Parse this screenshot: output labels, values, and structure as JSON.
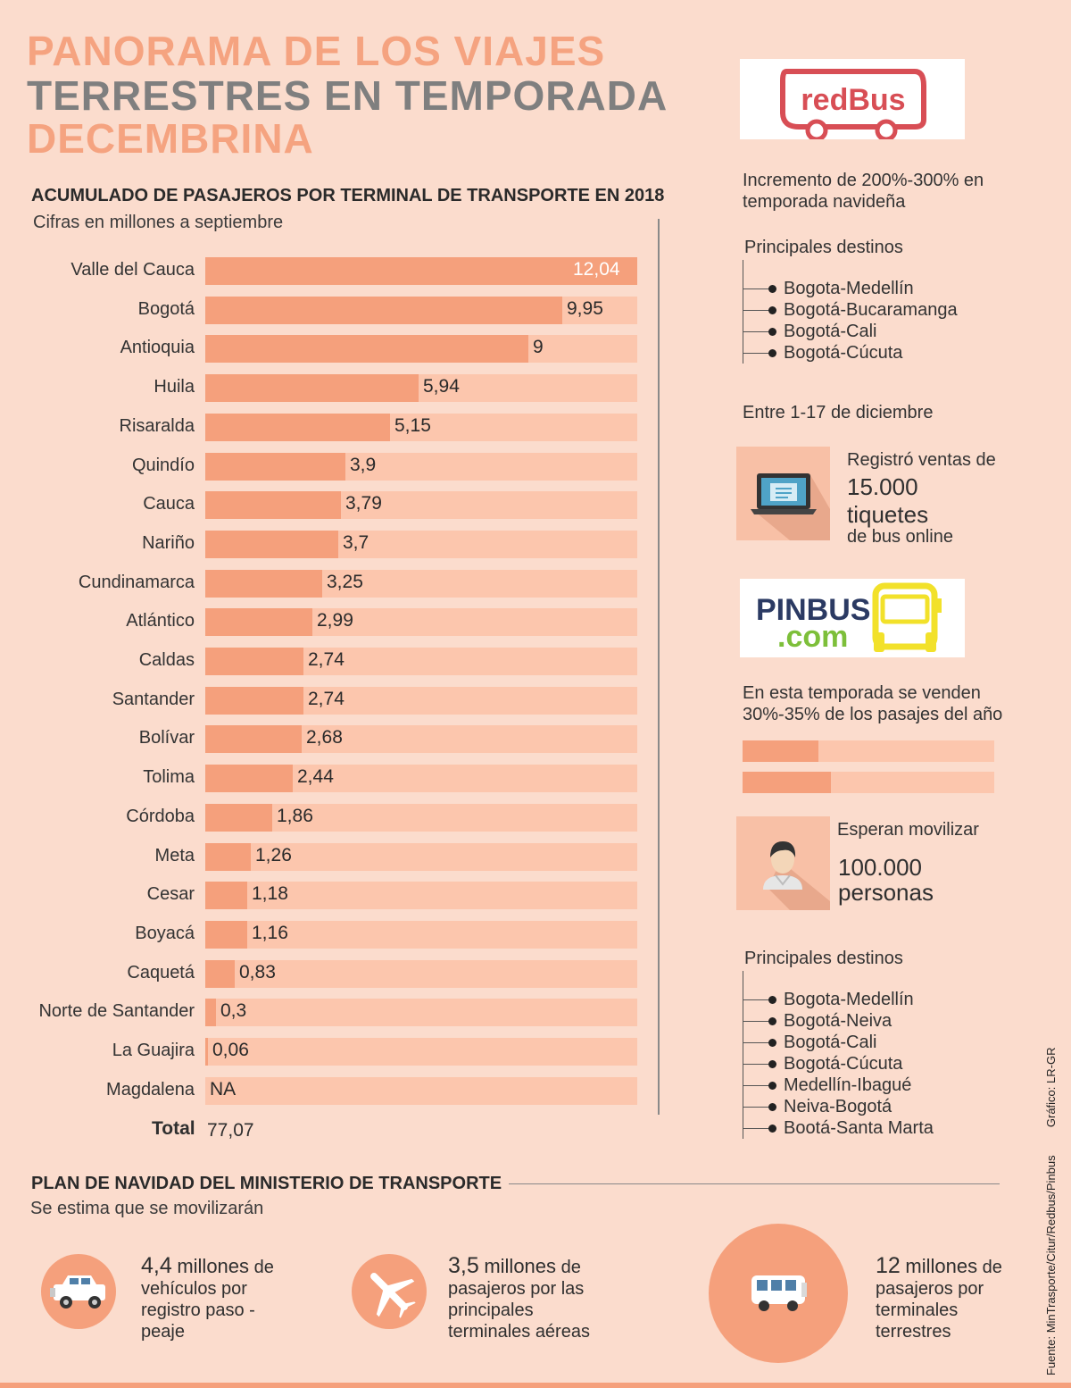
{
  "title": {
    "line1": "PANORAMA DE LOS VIAJES",
    "line2": "TERRESTRES EN TEMPORADA",
    "line3": "DECEMBRINA"
  },
  "chart_data": {
    "type": "bar",
    "title": "ACUMULADO DE PASAJEROS POR TERMINAL DE TRANSPORTE EN 2018",
    "subtitle": "Cifras en millones a septiembre",
    "orientation": "horizontal",
    "xlim": [
      0,
      12.04
    ],
    "categories": [
      "Valle del Cauca",
      "Bogotá",
      "Antioquia",
      "Huila",
      "Risaralda",
      "Quindío",
      "Cauca",
      "Nariño",
      "Cundinamarca",
      "Atlántico",
      "Caldas",
      "Santander",
      "Bolívar",
      "Tolima",
      "Córdoba",
      "Meta",
      "Cesar",
      "Boyacá",
      "Caquetá",
      "Norte de Santander",
      "La Guajira",
      "Magdalena"
    ],
    "values": [
      12.04,
      9.95,
      9,
      5.94,
      5.15,
      3.9,
      3.79,
      3.7,
      3.25,
      2.99,
      2.74,
      2.74,
      2.68,
      2.44,
      1.86,
      1.26,
      1.18,
      1.16,
      0.83,
      0.3,
      0.06,
      null
    ],
    "labels": [
      "12,04",
      "9,95",
      "9",
      "5,94",
      "5,15",
      "3,9",
      "3,79",
      "3,7",
      "3,25",
      "2,99",
      "2,74",
      "2,74",
      "2,68",
      "2,44",
      "1,86",
      "1,26",
      "1,18",
      "1,16",
      "0,83",
      "0,3",
      "0,06",
      "NA"
    ],
    "total_label": "Total",
    "total_value": "77,07"
  },
  "redbus": {
    "logo_text": "redBus",
    "increment": "Incremento de 200%-300% en temporada navideña",
    "destinations_title": "Principales destinos",
    "destinations": [
      "Bogota-Medellín",
      "Bogotá-Bucaramanga",
      "Bogotá-Cali",
      "Bogotá-Cúcuta"
    ],
    "period": "Entre 1-17 de diciembre",
    "sales_prefix": "Registró ventas de",
    "sales_number": "15.000",
    "sales_unit": "tiquetes",
    "sales_suffix": "de bus online",
    "icon": "laptop-icon"
  },
  "pinbus": {
    "logo_line1": "PINBUS",
    "logo_line2": ".com",
    "season_text": "En esta temporada se venden 30%-35% de los pasajes del año",
    "season_range": [
      0.3,
      0.35
    ],
    "expect_prefix": "Esperan movilizar",
    "expect_number": "100.000",
    "expect_unit": "personas",
    "destinations_title": "Principales destinos",
    "destinations": [
      "Bogota-Medellín",
      "Bogotá-Neiva",
      "Bogotá-Cali",
      "Bogotá-Cúcuta",
      "Medellín-Ibagué",
      "Neiva-Bogotá",
      "Bootá-Santa Marta"
    ],
    "icon": "person-icon"
  },
  "plan": {
    "title": "PLAN DE NAVIDAD DEL MINISTERIO DE TRANSPORTE",
    "subtitle": "Se estima que se movilizarán",
    "items": [
      {
        "number": "4,4",
        "unit": "millones",
        "rest": " de",
        "desc": "vehículos por registro paso - peaje",
        "icon": "jeep-icon"
      },
      {
        "number": "3,5",
        "unit": "millones",
        "rest": " de",
        "desc": "pasajeros por las principales terminales aéreas",
        "icon": "airplane-icon"
      },
      {
        "number": "12",
        "unit": "millones",
        "rest": " de",
        "desc": "pasajeros por terminales terrestres",
        "icon": "bus-icon"
      }
    ]
  },
  "credits": {
    "source": "Fuente: MinTrasporte/Citur/Redbus/Pinbus",
    "graphic": "Gráfico: LR-GR"
  },
  "colors": {
    "accent": "#f5a07c",
    "track": "#fcc6ad",
    "background": "#fbdccd",
    "title_orange": "#f5a380",
    "title_gray": "#7f7f7f",
    "redbus": "#d84e55",
    "pinbus_yellow": "#f2e12a",
    "pinbus_navy": "#2b3a63",
    "pinbus_green": "#7dbf3a"
  }
}
